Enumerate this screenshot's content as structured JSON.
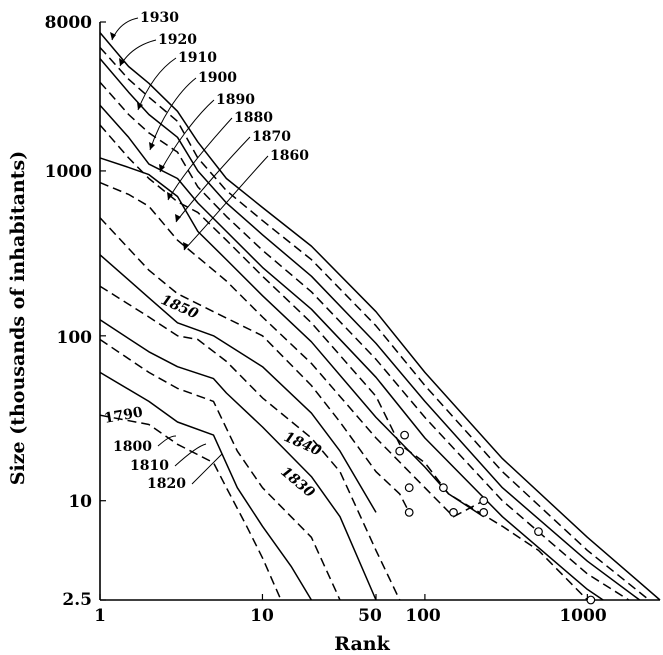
{
  "chart_data": {
    "type": "line",
    "xlabel": "Rank",
    "ylabel": "Size (thousands of inhabitants)",
    "x_scale": "log",
    "y_scale": "log",
    "xlim": [
      1,
      2800
    ],
    "ylim": [
      2.5,
      8000
    ],
    "x_ticks": [
      1,
      10,
      50,
      100,
      1000
    ],
    "x_tick_labels": [
      "1",
      "10",
      "50",
      "100",
      "1000"
    ],
    "y_ticks": [
      2.5,
      10,
      100,
      1000,
      8000
    ],
    "y_tick_labels": [
      "2.5",
      "10",
      "100",
      "1000",
      "8000"
    ],
    "grid": false,
    "legend": "none",
    "series": [
      {
        "name": "1930",
        "style": "solid",
        "marker": false,
        "points": [
          [
            1,
            6900
          ],
          [
            1.5,
            4300
          ],
          [
            2,
            3400
          ],
          [
            3,
            2300
          ],
          [
            4,
            1500
          ],
          [
            6,
            900
          ],
          [
            10,
            600
          ],
          [
            20,
            350
          ],
          [
            50,
            140
          ],
          [
            100,
            60
          ],
          [
            300,
            18
          ],
          [
            1000,
            6
          ],
          [
            2800,
            2.5
          ]
        ]
      },
      {
        "name": "1920",
        "style": "dashed",
        "marker": false,
        "points": [
          [
            1,
            5600
          ],
          [
            1.5,
            3600
          ],
          [
            2,
            2800
          ],
          [
            3,
            2000
          ],
          [
            4,
            1200
          ],
          [
            6,
            760
          ],
          [
            10,
            500
          ],
          [
            20,
            290
          ],
          [
            50,
            115
          ],
          [
            100,
            50
          ],
          [
            300,
            15
          ],
          [
            1000,
            5
          ],
          [
            2400,
            2.5
          ]
        ]
      },
      {
        "name": "1910",
        "style": "solid",
        "marker": false,
        "points": [
          [
            1,
            4800
          ],
          [
            1.5,
            3000
          ],
          [
            2,
            2200
          ],
          [
            3,
            1600
          ],
          [
            4,
            1000
          ],
          [
            6,
            640
          ],
          [
            10,
            410
          ],
          [
            20,
            230
          ],
          [
            50,
            90
          ],
          [
            100,
            40
          ],
          [
            300,
            12
          ],
          [
            1000,
            4.3
          ],
          [
            2100,
            2.5
          ]
        ]
      },
      {
        "name": "1900",
        "style": "dashed",
        "marker": false,
        "points": [
          [
            1,
            3450
          ],
          [
            1.5,
            2200
          ],
          [
            2,
            1700
          ],
          [
            3,
            1300
          ],
          [
            4,
            800
          ],
          [
            6,
            530
          ],
          [
            10,
            330
          ],
          [
            20,
            185
          ],
          [
            50,
            72
          ],
          [
            100,
            32
          ],
          [
            300,
            10
          ],
          [
            1000,
            3.6
          ],
          [
            1800,
            2.5
          ]
        ]
      },
      {
        "name": "1890",
        "style": "solid",
        "marker": false,
        "points": [
          [
            1,
            2500
          ],
          [
            1.5,
            1600
          ],
          [
            2,
            1100
          ],
          [
            3,
            900
          ],
          [
            4,
            640
          ],
          [
            6,
            430
          ],
          [
            10,
            260
          ],
          [
            20,
            145
          ],
          [
            50,
            56
          ],
          [
            100,
            24
          ],
          [
            300,
            8
          ],
          [
            1000,
            2.9
          ],
          [
            1250,
            2.5
          ]
        ]
      },
      {
        "name": "1880",
        "style": "dashed",
        "marker": false,
        "points": [
          [
            1,
            1900
          ],
          [
            1.5,
            1200
          ],
          [
            2,
            900
          ],
          [
            3,
            650
          ],
          [
            4,
            560
          ],
          [
            6,
            380
          ],
          [
            10,
            230
          ],
          [
            20,
            120
          ],
          [
            50,
            43
          ],
          [
            70,
            22
          ],
          [
            100,
            17
          ],
          [
            140,
            11
          ],
          [
            300,
            7
          ],
          [
            500,
            5
          ],
          [
            1000,
            2.5
          ]
        ]
      },
      {
        "name": "1870",
        "style": "solid",
        "marker": false,
        "points": [
          [
            1,
            1200
          ],
          [
            1.5,
            1050
          ],
          [
            2,
            950
          ],
          [
            3,
            700
          ],
          [
            4,
            430
          ],
          [
            6,
            290
          ],
          [
            10,
            175
          ],
          [
            20,
            92
          ],
          [
            50,
            32
          ],
          [
            100,
            16
          ],
          [
            140,
            11
          ],
          [
            230,
            8
          ]
        ]
      },
      {
        "name": "1860",
        "style": "dashed",
        "marker": false,
        "points": [
          [
            1,
            850
          ],
          [
            1.5,
            720
          ],
          [
            2,
            610
          ],
          [
            3,
            380
          ],
          [
            4,
            300
          ],
          [
            6,
            215
          ],
          [
            10,
            130
          ],
          [
            20,
            68
          ],
          [
            50,
            24
          ],
          [
            100,
            12
          ],
          [
            150,
            8
          ],
          [
            230,
            10
          ]
        ]
      },
      {
        "name": "1850",
        "style": "dashed",
        "marker": false,
        "points": [
          [
            1,
            520
          ],
          [
            2,
            250
          ],
          [
            3,
            180
          ],
          [
            5,
            140
          ],
          [
            10,
            100
          ],
          [
            20,
            50
          ],
          [
            30,
            30
          ],
          [
            50,
            15
          ],
          [
            70,
            11
          ],
          [
            80,
            8.5
          ]
        ]
      },
      {
        "name": "1840",
        "style": "solid",
        "marker": false,
        "points": [
          [
            1,
            310
          ],
          [
            2,
            170
          ],
          [
            3,
            120
          ],
          [
            5,
            100
          ],
          [
            10,
            65
          ],
          [
            20,
            34
          ],
          [
            30,
            20
          ],
          [
            50,
            8.5
          ]
        ]
      },
      {
        "name": "1830",
        "style": "dashed",
        "marker": false,
        "points": [
          [
            1,
            200
          ],
          [
            2,
            130
          ],
          [
            3,
            100
          ],
          [
            4,
            95
          ],
          [
            6,
            70
          ],
          [
            10,
            42
          ],
          [
            20,
            24
          ],
          [
            30,
            15
          ],
          [
            50,
            5
          ],
          [
            70,
            2.5
          ]
        ]
      },
      {
        "name": "1820",
        "style": "solid",
        "marker": false,
        "points": [
          [
            1,
            125
          ],
          [
            2,
            80
          ],
          [
            3,
            65
          ],
          [
            5,
            55
          ],
          [
            6,
            45
          ],
          [
            10,
            28
          ],
          [
            20,
            14
          ],
          [
            30,
            8
          ],
          [
            50,
            2.5
          ]
        ]
      },
      {
        "name": "1810",
        "style": "dashed",
        "marker": false,
        "points": [
          [
            1,
            95
          ],
          [
            2,
            60
          ],
          [
            3,
            48
          ],
          [
            5,
            40
          ],
          [
            7,
            20
          ],
          [
            10,
            12
          ],
          [
            20,
            6
          ],
          [
            30,
            2.5
          ]
        ]
      },
      {
        "name": "1800",
        "style": "solid",
        "marker": false,
        "points": [
          [
            1,
            60
          ],
          [
            2,
            40
          ],
          [
            3,
            30
          ],
          [
            5,
            25
          ],
          [
            7,
            12
          ],
          [
            10,
            7
          ],
          [
            15,
            4
          ],
          [
            20,
            2.5
          ]
        ]
      },
      {
        "name": "1790",
        "style": "dashed",
        "marker": false,
        "points": [
          [
            1,
            33
          ],
          [
            2,
            29
          ],
          [
            3,
            22
          ],
          [
            5,
            17
          ],
          [
            6,
            12
          ],
          [
            8,
            7
          ],
          [
            10,
            4.5
          ],
          [
            13,
            2.5
          ]
        ]
      }
    ],
    "open_circle_markers": [
      [
        75,
        25
      ],
      [
        70,
        20
      ],
      [
        80,
        12
      ],
      [
        80,
        8.5
      ],
      [
        130,
        12
      ],
      [
        150,
        8.5
      ],
      [
        230,
        10
      ],
      [
        230,
        8.5
      ],
      [
        500,
        6.5
      ],
      [
        1050,
        2.5
      ]
    ],
    "annotations": [
      "1930",
      "1920",
      "1910",
      "1900",
      "1890",
      "1880",
      "1870",
      "1860",
      "1850",
      "1840",
      "1830",
      "1820",
      "1810",
      "1800",
      "1790"
    ]
  },
  "labels": {
    "axis_x": "Rank",
    "axis_y": "Size (thousands of inhabitants)",
    "y_8000": "8000",
    "y_1000": "1000",
    "y_100": "100",
    "y_10": "10",
    "y_2_5": "2.5",
    "x_1": "1",
    "x_10": "10",
    "x_50": "50",
    "x_100": "100",
    "x_1000": "1000"
  }
}
